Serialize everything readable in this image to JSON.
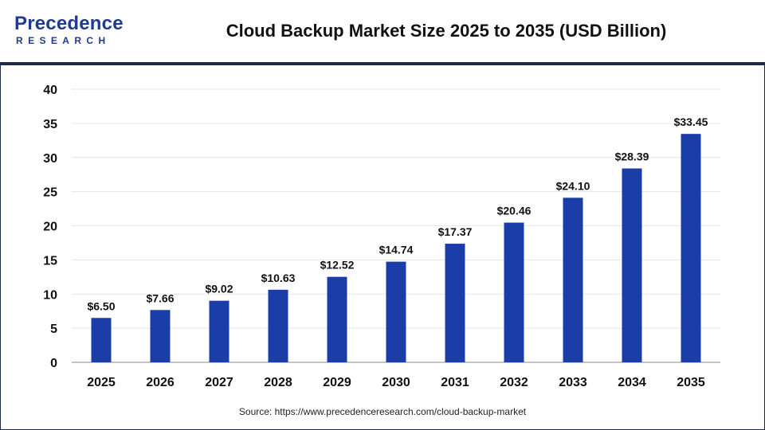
{
  "header": {
    "logo_main": "Precedence",
    "logo_sub": "RESEARCH",
    "title": "Cloud Backup Market Size 2025 to 2035 (USD Billion)"
  },
  "footer": {
    "source": "Source: https://www.precedenceresearch.com/cloud-backup-market"
  },
  "colors": {
    "bar": "#1a3da8",
    "grid": "#e6e6e6",
    "axis": "#888888",
    "text": "#111111"
  },
  "chart_data": {
    "type": "bar",
    "title": "Cloud Backup Market Size 2025 to 2035 (USD Billion)",
    "xlabel": "",
    "ylabel": "",
    "categories": [
      "2025",
      "2026",
      "2027",
      "2028",
      "2029",
      "2030",
      "2031",
      "2032",
      "2033",
      "2034",
      "2035"
    ],
    "values": [
      6.5,
      7.66,
      9.02,
      10.63,
      12.52,
      14.74,
      17.37,
      20.46,
      24.1,
      28.39,
      33.45
    ],
    "data_labels": [
      "$6.50",
      "$7.66",
      "$9.02",
      "$10.63",
      "$12.52",
      "$14.74",
      "$17.37",
      "$20.46",
      "$24.10",
      "$28.39",
      "$33.45"
    ],
    "ylim": [
      0,
      40
    ],
    "yticks": [
      "0",
      "5",
      "10",
      "15",
      "20",
      "25",
      "30",
      "35",
      "40"
    ],
    "grid": true,
    "legend": "none"
  }
}
